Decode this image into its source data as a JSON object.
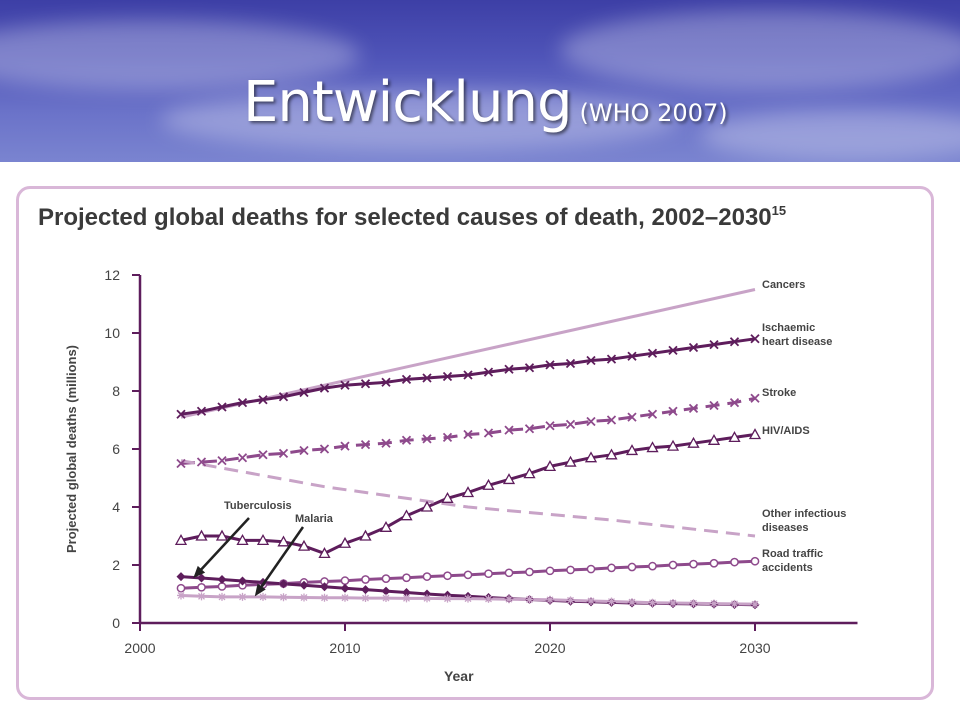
{
  "slide": {
    "title": "Entwicklung",
    "subtitle": "(WHO 2007)"
  },
  "colors": {
    "dark": "#5e1d5c",
    "medium": "#8e4a8c",
    "light": "#c8a3c7",
    "frame": "#d9b7d8",
    "banner": "#4a50b5"
  },
  "chart_data": {
    "type": "line",
    "title": "Projected global deaths for selected causes of death, 2002–2030",
    "title_superscript": "15",
    "xlabel": "Year",
    "ylabel": "Projected global deaths (millions)",
    "xlim": [
      2000,
      2035
    ],
    "ylim": [
      0,
      12
    ],
    "xticks": [
      2000,
      2010,
      2020,
      2030
    ],
    "yticks": [
      0,
      2,
      4,
      6,
      8,
      10,
      12
    ],
    "grid": false,
    "legend": "right-end labels",
    "series": [
      {
        "name": "Cancers",
        "label_lines": [
          "Cancers"
        ],
        "style": "solid",
        "marker": "none",
        "color": "light",
        "x": [
          2002,
          2030
        ],
        "y": [
          7.1,
          11.5
        ]
      },
      {
        "name": "Ischaemic heart disease",
        "label_lines": [
          "Ischaemic",
          "heart disease"
        ],
        "style": "solid",
        "marker": "x",
        "color": "dark",
        "x": [
          2002,
          2003,
          2004,
          2005,
          2006,
          2007,
          2008,
          2009,
          2010,
          2011,
          2012,
          2013,
          2014,
          2015,
          2016,
          2017,
          2018,
          2019,
          2020,
          2021,
          2022,
          2023,
          2024,
          2025,
          2026,
          2027,
          2028,
          2029,
          2030
        ],
        "y": [
          7.2,
          7.3,
          7.45,
          7.6,
          7.7,
          7.8,
          7.95,
          8.1,
          8.2,
          8.25,
          8.3,
          8.4,
          8.45,
          8.5,
          8.55,
          8.65,
          8.75,
          8.8,
          8.9,
          8.95,
          9.05,
          9.1,
          9.2,
          9.3,
          9.4,
          9.5,
          9.6,
          9.7,
          9.8
        ]
      },
      {
        "name": "Stroke",
        "label_lines": [
          "Stroke"
        ],
        "style": "dashed",
        "marker": "x",
        "color": "medium",
        "x": [
          2002,
          2003,
          2004,
          2005,
          2006,
          2007,
          2008,
          2009,
          2010,
          2011,
          2012,
          2013,
          2014,
          2015,
          2016,
          2017,
          2018,
          2019,
          2020,
          2021,
          2022,
          2023,
          2024,
          2025,
          2026,
          2027,
          2028,
          2029,
          2030
        ],
        "y": [
          5.5,
          5.55,
          5.6,
          5.7,
          5.8,
          5.85,
          5.95,
          6.0,
          6.1,
          6.15,
          6.2,
          6.3,
          6.35,
          6.4,
          6.5,
          6.55,
          6.65,
          6.7,
          6.8,
          6.85,
          6.95,
          7.0,
          7.1,
          7.2,
          7.3,
          7.4,
          7.5,
          7.6,
          7.75
        ]
      },
      {
        "name": "HIV/AIDS",
        "label_lines": [
          "HIV/AIDS"
        ],
        "style": "solid",
        "marker": "triangle",
        "color": "dark",
        "x": [
          2002,
          2003,
          2004,
          2005,
          2006,
          2007,
          2008,
          2009,
          2010,
          2011,
          2012,
          2013,
          2014,
          2015,
          2016,
          2017,
          2018,
          2019,
          2020,
          2021,
          2022,
          2023,
          2024,
          2025,
          2026,
          2027,
          2028,
          2029,
          2030
        ],
        "y": [
          2.85,
          3.0,
          3.0,
          2.85,
          2.85,
          2.8,
          2.65,
          2.4,
          2.75,
          3.0,
          3.3,
          3.7,
          4.0,
          4.3,
          4.5,
          4.75,
          4.95,
          5.15,
          5.4,
          5.55,
          5.7,
          5.8,
          5.95,
          6.05,
          6.1,
          6.2,
          6.3,
          6.4,
          6.5
        ]
      },
      {
        "name": "Other infectious diseases",
        "label_lines": [
          "Other infectious",
          "diseases"
        ],
        "style": "dashed",
        "marker": "none",
        "color": "light",
        "x": [
          2002,
          2009,
          2016,
          2023,
          2030
        ],
        "y": [
          5.6,
          4.7,
          4.0,
          3.55,
          3.0
        ]
      },
      {
        "name": "Road traffic accidents",
        "label_lines": [
          "Road traffic",
          "accidents"
        ],
        "style": "solid",
        "marker": "circle",
        "color": "medium",
        "x": [
          2002,
          2003,
          2004,
          2005,
          2006,
          2007,
          2008,
          2009,
          2010,
          2011,
          2012,
          2013,
          2014,
          2015,
          2016,
          2017,
          2018,
          2019,
          2020,
          2021,
          2022,
          2023,
          2024,
          2025,
          2026,
          2027,
          2028,
          2029,
          2030
        ],
        "y": [
          1.2,
          1.23,
          1.26,
          1.3,
          1.33,
          1.36,
          1.4,
          1.43,
          1.46,
          1.5,
          1.53,
          1.56,
          1.6,
          1.63,
          1.66,
          1.7,
          1.73,
          1.76,
          1.8,
          1.83,
          1.86,
          1.9,
          1.93,
          1.96,
          2.0,
          2.03,
          2.06,
          2.1,
          2.13
        ]
      },
      {
        "name": "Tuberculosis",
        "label_lines": [
          "Tuberculosis"
        ],
        "style": "solid",
        "marker": "diamond",
        "color": "dark",
        "x": [
          2002,
          2003,
          2004,
          2005,
          2006,
          2007,
          2008,
          2009,
          2010,
          2011,
          2012,
          2013,
          2014,
          2015,
          2016,
          2017,
          2018,
          2019,
          2020,
          2021,
          2022,
          2023,
          2024,
          2025,
          2026,
          2027,
          2028,
          2029,
          2030
        ],
        "y": [
          1.6,
          1.55,
          1.5,
          1.45,
          1.4,
          1.35,
          1.3,
          1.25,
          1.2,
          1.15,
          1.1,
          1.05,
          1.0,
          0.96,
          0.92,
          0.88,
          0.84,
          0.81,
          0.78,
          0.75,
          0.73,
          0.71,
          0.69,
          0.68,
          0.67,
          0.66,
          0.65,
          0.64,
          0.63
        ]
      },
      {
        "name": "Malaria",
        "label_lines": [
          "Malaria"
        ],
        "style": "solid",
        "marker": "star",
        "color": "light",
        "x": [
          2002,
          2003,
          2004,
          2005,
          2006,
          2007,
          2008,
          2009,
          2010,
          2011,
          2012,
          2013,
          2014,
          2015,
          2016,
          2017,
          2018,
          2019,
          2020,
          2021,
          2022,
          2023,
          2024,
          2025,
          2026,
          2027,
          2028,
          2029,
          2030
        ],
        "y": [
          0.95,
          0.92,
          0.9,
          0.9,
          0.9,
          0.89,
          0.88,
          0.87,
          0.87,
          0.86,
          0.86,
          0.85,
          0.85,
          0.84,
          0.84,
          0.83,
          0.82,
          0.81,
          0.8,
          0.78,
          0.76,
          0.74,
          0.72,
          0.7,
          0.69,
          0.68,
          0.67,
          0.66,
          0.65
        ]
      }
    ],
    "annotations": [
      {
        "text": "Tuberculosis",
        "target_series": "Tuberculosis",
        "target": [
          2002.6,
          1.55
        ]
      },
      {
        "text": "Malaria",
        "target_series": "Malaria",
        "target": [
          2005.6,
          0.92
        ]
      }
    ]
  }
}
